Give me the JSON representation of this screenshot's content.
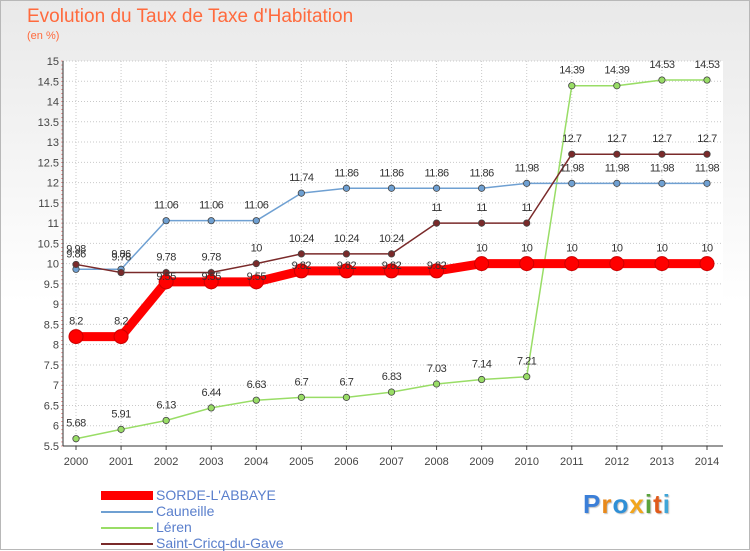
{
  "header": {
    "title": "Evolution du Taux de Taxe d'Habitation",
    "subtitle": "(en %)"
  },
  "logo": {
    "text": "Proxiti",
    "colors": [
      "#3b7fd8",
      "#e8891b",
      "#2f8fd6",
      "#f2a51c",
      "#5aa33c",
      "#e05a1a",
      "#3fa5d8"
    ]
  },
  "chart_data": {
    "type": "line",
    "title": "Evolution du Taux de Taxe d'Habitation",
    "ylabel": "(en %)",
    "xlabel": "",
    "x": [
      2000,
      2001,
      2002,
      2003,
      2004,
      2005,
      2006,
      2007,
      2008,
      2009,
      2010,
      2011,
      2012,
      2013,
      2014
    ],
    "ylim": [
      5.5,
      15
    ],
    "yticks": [
      5.5,
      6,
      6.5,
      7,
      7.5,
      8,
      8.5,
      9,
      9.5,
      10,
      10.5,
      11,
      11.5,
      12,
      12.5,
      13,
      13.5,
      14,
      14.5,
      15
    ],
    "grid": true,
    "legend_position": "bottom-left",
    "series": [
      {
        "name": "SORDE-L'ABBAYE",
        "color": "#ff0000",
        "values": [
          8.2,
          8.2,
          9.55,
          9.55,
          9.55,
          9.82,
          9.82,
          9.82,
          9.82,
          10,
          10,
          10,
          10,
          10,
          10
        ],
        "labels": [
          "8.2",
          "8.2",
          "",
          "",
          "",
          "",
          "",
          "",
          "",
          "10",
          "10",
          "10",
          "10",
          "10",
          "10"
        ]
      },
      {
        "name": "Cauneille",
        "color": "#6fa0d2",
        "values": [
          9.86,
          9.86,
          11.06,
          11.06,
          11.06,
          11.74,
          11.86,
          11.86,
          11.86,
          11.86,
          11.98,
          11.98,
          11.98,
          11.98,
          11.98
        ],
        "labels": [
          "9.86",
          "9.86",
          "11.06",
          "11.06",
          "11.06",
          "11.74",
          "11.86",
          "11.86",
          "11.86",
          "11.86",
          "11.98",
          "11.98",
          "11.98",
          "11.98",
          "11.98"
        ]
      },
      {
        "name": "Léren",
        "color": "#99dd66",
        "values": [
          5.68,
          5.91,
          6.13,
          6.44,
          6.63,
          6.7,
          6.7,
          6.83,
          7.03,
          7.14,
          7.21,
          14.39,
          14.39,
          14.53,
          14.53
        ],
        "labels": [
          "5.68",
          "5.91",
          "6.13",
          "6.44",
          "6.63",
          "6.7",
          "6.7",
          "6.83",
          "7.03",
          "7.14",
          "7.21",
          "14.39",
          "14.39",
          "14.53",
          "14.53"
        ]
      },
      {
        "name": "Saint-Cricq-du-Gave",
        "color": "#7a2a2a",
        "values": [
          9.98,
          9.78,
          9.78,
          9.78,
          10,
          10.24,
          10.24,
          10.24,
          11,
          11,
          11,
          12.7,
          12.7,
          12.7,
          12.7
        ],
        "labels": [
          "9.98",
          "9.78",
          "9.78",
          "9.78",
          "10",
          "10.24",
          "10.24",
          "10.24",
          "11",
          "11",
          "11",
          "12.7",
          "12.7",
          "12.7",
          "12.7"
        ]
      }
    ],
    "extra_labels": [
      "9.55",
      "9.55",
      "9.55",
      "9.82",
      "9.82",
      "9.82",
      "9.82"
    ]
  }
}
